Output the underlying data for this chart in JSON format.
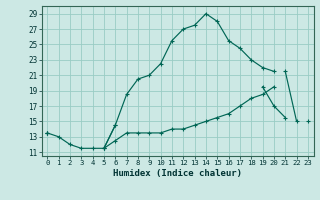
{
  "title": "",
  "xlabel": "Humidex (Indice chaleur)",
  "bg_color": "#cce8e4",
  "grid_color": "#99ccc4",
  "line_color": "#006655",
  "xlim": [
    -0.5,
    23.5
  ],
  "ylim": [
    10.5,
    30
  ],
  "xticks": [
    0,
    1,
    2,
    3,
    4,
    5,
    6,
    7,
    8,
    9,
    10,
    11,
    12,
    13,
    14,
    15,
    16,
    17,
    18,
    19,
    20,
    21,
    22,
    23
  ],
  "yticks": [
    11,
    13,
    15,
    17,
    19,
    21,
    23,
    25,
    27,
    29
  ],
  "line1_y": [
    13.5,
    13,
    12,
    11.5,
    11.5,
    11.5,
    14.5,
    18.5,
    20.5,
    21,
    22.5,
    25.5,
    27,
    27.5,
    29,
    28,
    25.5,
    24.5,
    23,
    22,
    21.5,
    null,
    null,
    null
  ],
  "line2_y": [
    13.5,
    null,
    null,
    null,
    null,
    11.5,
    14.5,
    null,
    null,
    null,
    null,
    null,
    null,
    null,
    null,
    null,
    null,
    null,
    null,
    19.5,
    17,
    15.5,
    null,
    15
  ],
  "line3_y": [
    13.5,
    null,
    null,
    null,
    null,
    11.5,
    12.5,
    13.5,
    13.5,
    13.5,
    13.5,
    14,
    14,
    14.5,
    15,
    15.5,
    16,
    17,
    18,
    18.5,
    19.5,
    null,
    null,
    null
  ],
  "line4_y": [
    null,
    null,
    null,
    null,
    null,
    null,
    null,
    null,
    null,
    null,
    null,
    null,
    null,
    null,
    null,
    null,
    null,
    null,
    null,
    null,
    null,
    21.5,
    15,
    null
  ]
}
